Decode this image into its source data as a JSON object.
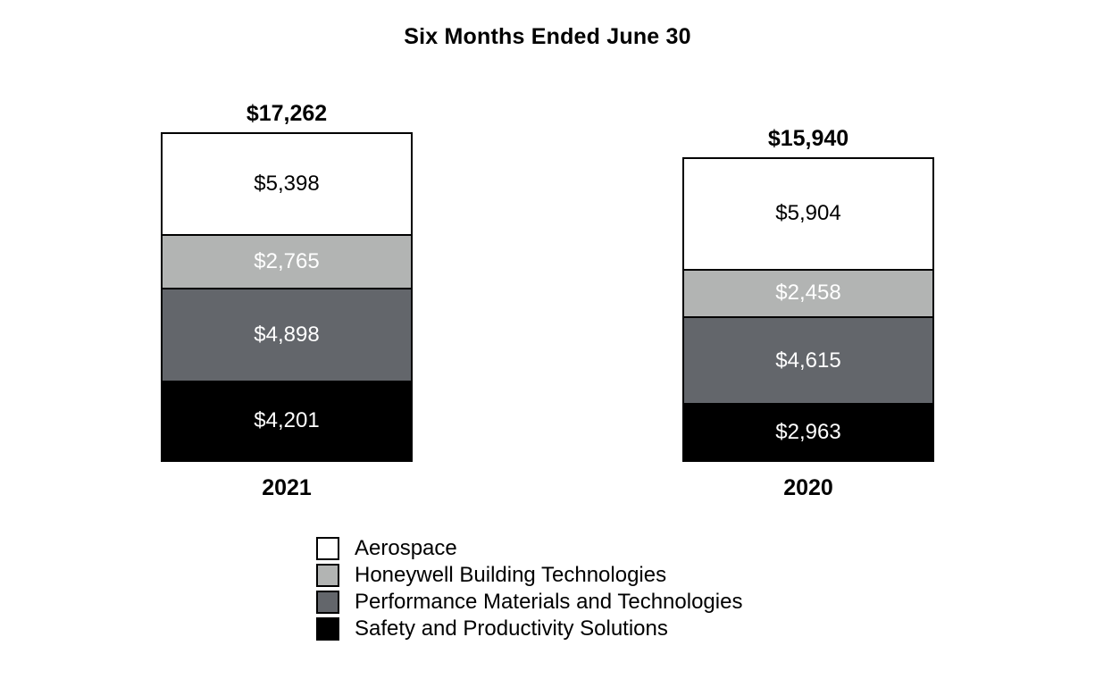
{
  "chart_data": {
    "type": "bar",
    "stacked": true,
    "title": "Six Months Ended June 30",
    "categories": [
      "2021",
      "2020"
    ],
    "totals": [
      17262,
      15940
    ],
    "total_labels": [
      "$17,262",
      "$15,940"
    ],
    "series": [
      {
        "name": "Aerospace",
        "color": "#ffffff",
        "text_color": "#000000",
        "values": [
          5398,
          5904
        ],
        "labels": [
          "$5,398",
          "$5,904"
        ]
      },
      {
        "name": "Honeywell Building Technologies",
        "color": "#b2b4b3",
        "text_color": "#ffffff",
        "values": [
          2765,
          2458
        ],
        "labels": [
          "$2,765",
          "$2,458"
        ]
      },
      {
        "name": "Performance Materials and Technologies",
        "color": "#63666b",
        "text_color": "#ffffff",
        "values": [
          4898,
          4615
        ],
        "labels": [
          "$4,898",
          "$4,615"
        ]
      },
      {
        "name": "Safety and Productivity Solutions",
        "color": "#000000",
        "text_color": "#ffffff",
        "values": [
          4201,
          2963
        ],
        "labels": [
          "$4,201",
          "$2,963"
        ]
      }
    ],
    "legend_position": "bottom",
    "grid": false,
    "axes_visible": false,
    "border_color": "#000000"
  }
}
